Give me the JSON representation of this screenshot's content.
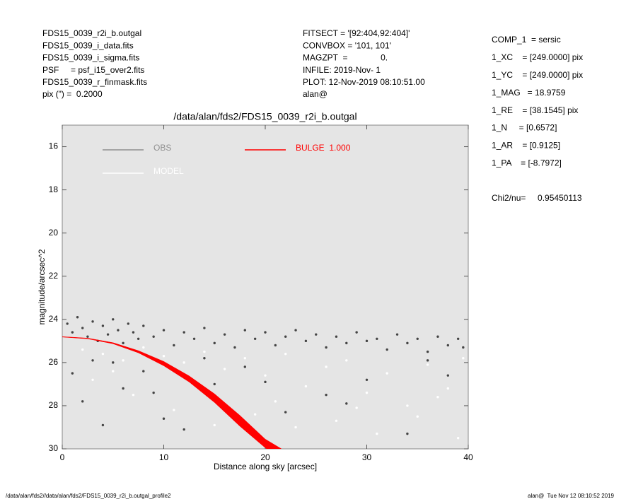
{
  "header": {
    "left": [
      "FDS15_0039_r2i_b.outgal",
      "FDS15_0039_i_data.fits",
      "FDS15_0039_i_sigma.fits",
      "PSF     = psf_i15_over2.fits",
      "FDS15_0039_r_finmask.fits",
      "pix (\") =  0.2000"
    ],
    "center": [
      "FITSECT = '[92:404,92:404]'",
      "CONVBOX = '101, 101'",
      "MAGZPT  =              0.",
      "INFILE: 2019-Nov- 1",
      "PLOT: 12-Nov-2019 08:10:51.00",
      "alan@"
    ],
    "right": [
      "COMP_1  = sersic",
      "1_XC    = [249.0000] pix",
      "1_YC    = [249.0000] pix",
      "1_MAG   = 18.9759",
      "1_RE    = [38.1545] pix",
      "1_N     = [0.6572]",
      "1_AR    = [0.9125]",
      "1_PA    = [-8.7972]"
    ],
    "chi": "Chi2/nu=     0.95450113"
  },
  "footer": {
    "left": "/data/alan/fds2//data/alan/fds2/FDS15_0039_r2i_b.outgal_profile2",
    "right": "alan@  Tue Nov 12 08:10:52 2019"
  },
  "chart_data": {
    "type": "scatter",
    "title": "/data/alan/fds2/FDS15_0039_r2i_b.outgal",
    "xlabel": "Distance along sky [arcsec]",
    "ylabel": "magnitude/arcsec^2",
    "xlim": [
      0,
      40
    ],
    "xticks": [
      0,
      10,
      20,
      30,
      40
    ],
    "ylim": [
      30,
      15
    ],
    "yticks": [
      16,
      18,
      20,
      22,
      24,
      26,
      28,
      30
    ],
    "series": [
      {
        "name": "OBS",
        "color": "#444444",
        "legend_color": "#909090",
        "x": [
          0.5,
          1,
          1.5,
          2,
          2.5,
          3,
          3.5,
          4,
          4.5,
          5,
          5.5,
          6,
          6.5,
          7,
          7.5,
          8,
          9,
          10,
          11,
          12,
          13,
          14,
          15,
          16,
          17,
          18,
          19,
          20,
          21,
          22,
          23,
          24,
          25,
          26,
          27,
          28,
          29,
          30,
          31,
          32,
          33,
          34,
          35,
          36,
          37,
          38,
          39,
          39.5,
          1,
          2,
          3,
          4,
          6,
          8,
          10,
          12,
          15,
          18,
          22,
          26,
          30,
          34,
          38,
          5,
          9,
          14,
          20,
          28,
          36
        ],
        "values": [
          24.2,
          24.6,
          23.9,
          24.4,
          24.8,
          24.1,
          25.0,
          24.3,
          24.7,
          24.0,
          24.5,
          25.1,
          24.2,
          24.6,
          24.9,
          24.3,
          24.8,
          24.5,
          25.2,
          24.6,
          24.9,
          24.4,
          25.1,
          24.7,
          25.3,
          24.5,
          24.9,
          24.6,
          25.2,
          24.8,
          24.5,
          25.0,
          24.7,
          25.3,
          24.8,
          25.1,
          24.6,
          25.0,
          24.9,
          25.4,
          24.7,
          25.1,
          24.9,
          25.5,
          24.8,
          25.2,
          24.9,
          25.3,
          26.5,
          27.8,
          25.9,
          28.9,
          27.2,
          26.4,
          28.6,
          29.1,
          27.0,
          26.2,
          28.3,
          27.5,
          26.8,
          29.3,
          26.6,
          26.0,
          27.4,
          25.8,
          26.9,
          27.9,
          25.9
        ]
      },
      {
        "name": "MODEL",
        "color": "#ffffff",
        "legend_color": "#ffffff",
        "x": [
          2,
          4,
          6,
          8,
          10,
          12,
          14,
          16,
          18,
          20,
          22,
          24,
          26,
          28,
          30,
          32,
          34,
          36,
          38,
          39.5,
          3,
          7,
          11,
          15,
          19,
          23,
          27,
          31,
          35,
          39,
          5,
          13,
          21,
          29,
          37
        ],
        "values": [
          25.4,
          25.6,
          25.9,
          25.3,
          25.7,
          26.0,
          25.5,
          26.3,
          25.8,
          26.6,
          25.6,
          27.1,
          26.2,
          25.9,
          27.4,
          26.5,
          28.0,
          26.1,
          27.2,
          25.8,
          26.8,
          27.5,
          28.2,
          28.9,
          28.4,
          29.0,
          28.7,
          29.3,
          28.5,
          29.5,
          26.4,
          27.0,
          27.8,
          28.1,
          27.6
        ]
      },
      {
        "name": "BULGE  1.000",
        "color": "#ff0000",
        "legend_color": "#ff0000",
        "kind": "band",
        "x": [
          0,
          2.5,
          5,
          7.5,
          10,
          12.5,
          15,
          17.5,
          20,
          21.6
        ],
        "values": [
          24.8,
          24.87,
          25.08,
          25.45,
          25.95,
          26.62,
          27.45,
          28.45,
          29.55,
          30.0
        ],
        "lower": [
          24.82,
          24.9,
          25.13,
          25.55,
          26.15,
          26.9,
          27.85,
          28.95,
          29.95,
          30.55
        ]
      }
    ]
  }
}
